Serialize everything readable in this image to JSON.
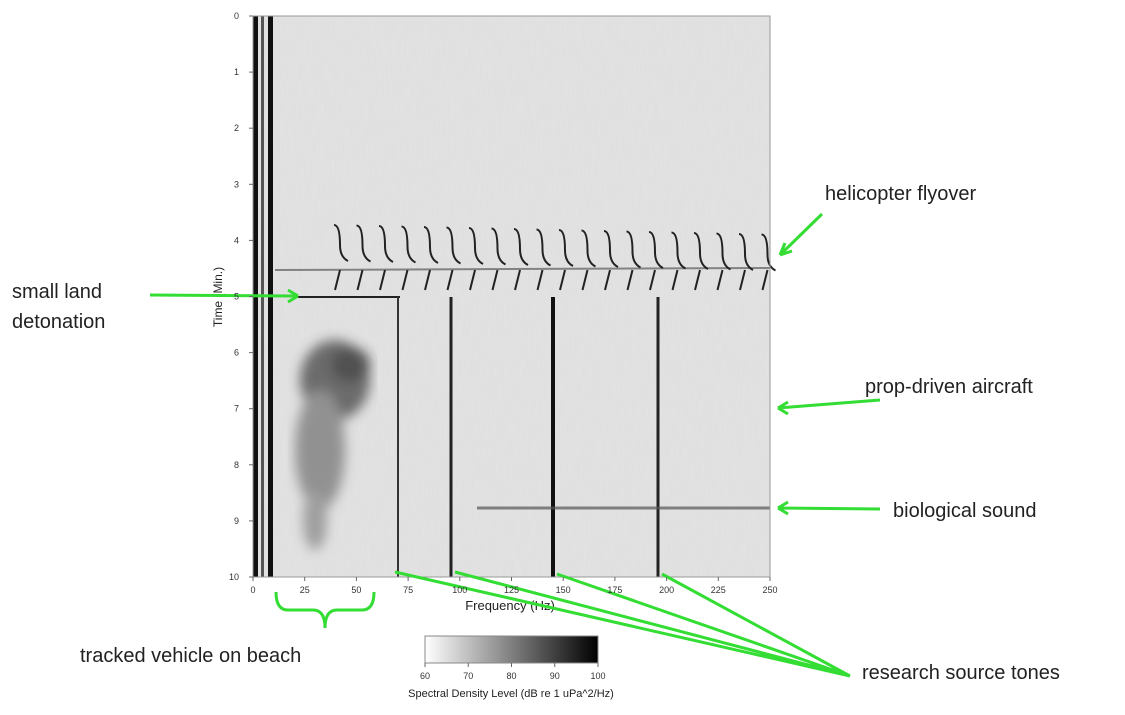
{
  "chart_data": {
    "type": "spectrogram",
    "xlabel": "Frequency (Hz)",
    "ylabel": "Time (Min.)",
    "xlim": [
      0,
      250
    ],
    "xticks": [
      0,
      25,
      50,
      75,
      100,
      125,
      150,
      175,
      200,
      225,
      250
    ],
    "ylim": [
      0,
      10
    ],
    "yticks": [
      0,
      1,
      2,
      3,
      4,
      5,
      6,
      7,
      8,
      9,
      10
    ],
    "colorbar": {
      "label": "Spectral Density Level (dB re 1 uPa^2/Hz)",
      "lim": [
        60,
        100
      ],
      "ticks": [
        60,
        70,
        80,
        90,
        100
      ],
      "colors": [
        "#ffffff",
        "#000000"
      ]
    },
    "annotations": [
      {
        "text": "helicopter flyover"
      },
      {
        "text": "small land"
      },
      {
        "text": "detonation"
      },
      {
        "text": "prop-driven aircraft"
      },
      {
        "text": "biological sound"
      },
      {
        "text": "tracked vehicle on beach"
      },
      {
        "text": "research source tones"
      }
    ],
    "annotation_color": "#33dd33"
  }
}
